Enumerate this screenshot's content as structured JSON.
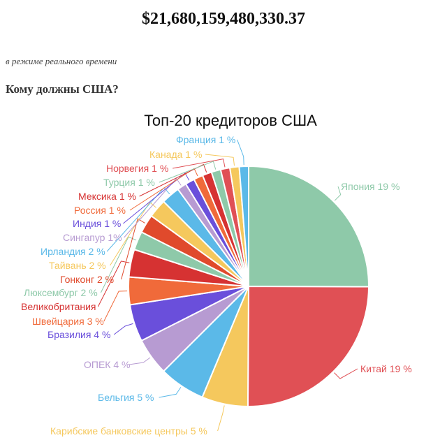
{
  "header": {
    "total_debt": "$21,680,159,480,330.37",
    "realtime_note": "в режиме реального времени",
    "question": "Кому должны США?"
  },
  "chart_data": {
    "type": "pie",
    "title": "Топ-20 кредиторов США",
    "slices": [
      {
        "label": "Япония 19 %",
        "value": 25,
        "color": "#8ec9a9"
      },
      {
        "label": "Китай 19 %",
        "value": 25,
        "color": "#e05055"
      },
      {
        "label": "Карибские банковские центры 5 %",
        "value": 6.2,
        "color": "#f5c85d"
      },
      {
        "label": "Бельгия 5 %",
        "value": 6.2,
        "color": "#5bb9e8"
      },
      {
        "label": "ОПЕК 4 %",
        "value": 5.0,
        "color": "#b79bd2"
      },
      {
        "label": "Бразилия 4 %",
        "value": 5.0,
        "color": "#6a4fdb"
      },
      {
        "label": "Швейцария 3 %",
        "value": 3.7,
        "color": "#f06a3a"
      },
      {
        "label": "Великобритания",
        "value": 3.7,
        "color": "#d63232"
      },
      {
        "label": "Люксембург 2 %",
        "value": 2.5,
        "color": "#8ec9a9"
      },
      {
        "label": "Гонконг 2 %",
        "value": 2.5,
        "color": "#e04a2c"
      },
      {
        "label": "Тайвань 2 %",
        "value": 2.5,
        "color": "#f5c85d"
      },
      {
        "label": "Ирландия 2 %",
        "value": 2.5,
        "color": "#5bb9e8"
      },
      {
        "label": "Сингапур 1%",
        "value": 1.25,
        "color": "#b79bd2"
      },
      {
        "label": "Индия 1 %",
        "value": 1.25,
        "color": "#6a4fdb"
      },
      {
        "label": "Россия 1 %",
        "value": 1.25,
        "color": "#f06a3a"
      },
      {
        "label": "Мексика 1 %",
        "value": 1.25,
        "color": "#d63232"
      },
      {
        "label": "Турция 1 %",
        "value": 1.25,
        "color": "#8ec9a9"
      },
      {
        "label": "Норвегия 1 %",
        "value": 1.25,
        "color": "#e05055"
      },
      {
        "label": "Канада 1 %",
        "value": 1.25,
        "color": "#f5c85d"
      },
      {
        "label": "Франция 1 %",
        "value": 1.25,
        "color": "#5bb9e8"
      }
    ]
  }
}
